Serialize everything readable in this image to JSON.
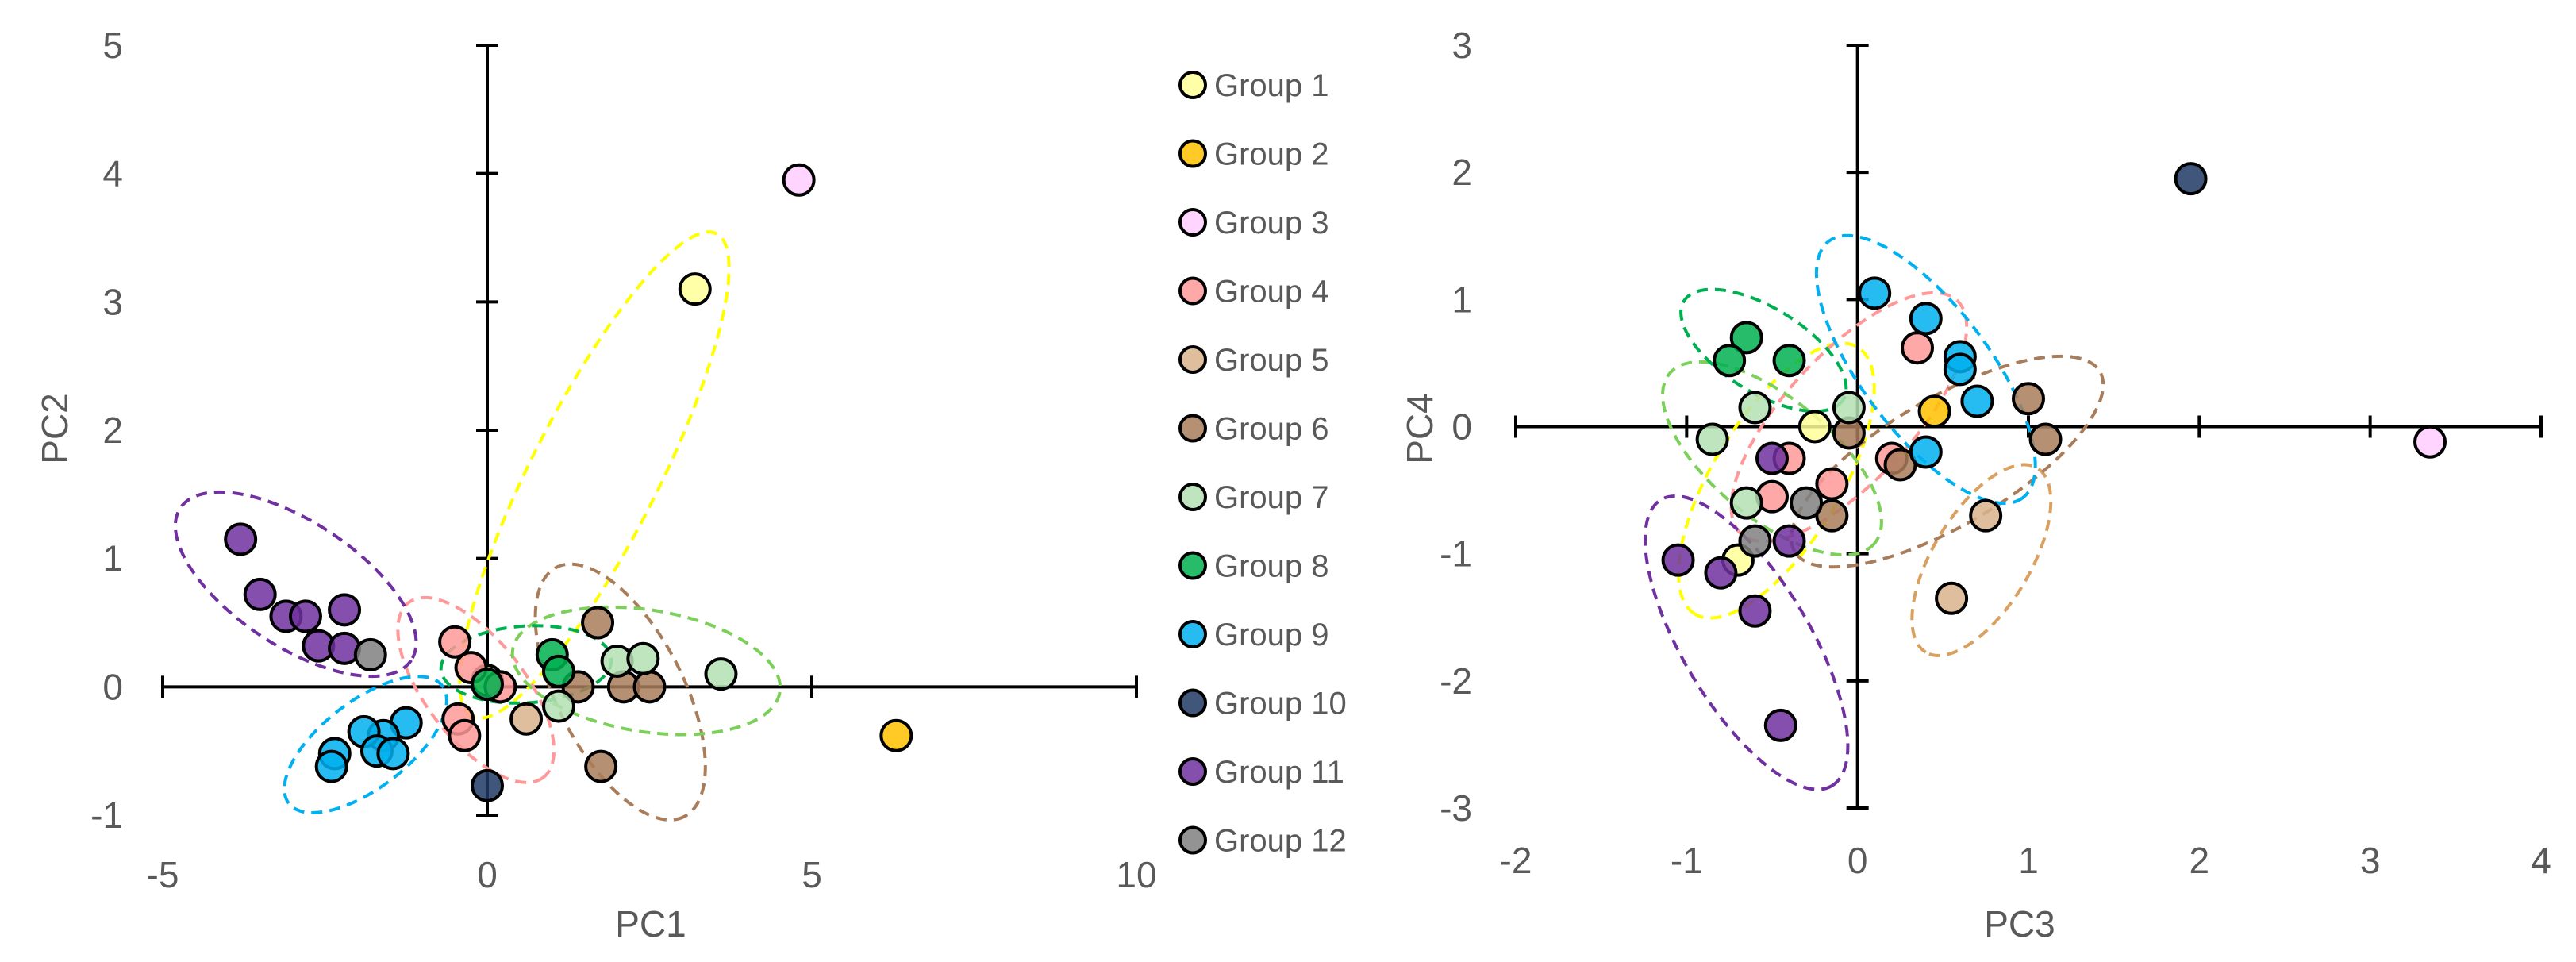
{
  "chart_data": [
    {
      "type": "scatter",
      "title": "",
      "xlabel": "PC1",
      "ylabel": "PC2",
      "xlim": [
        -5,
        10
      ],
      "ylim": [
        -1,
        5
      ],
      "xticks": [
        -5,
        0,
        5,
        10
      ],
      "yticks": [
        -1,
        0,
        1,
        2,
        3,
        4,
        5
      ],
      "grid": false,
      "series": [
        {
          "name": "Group 1",
          "points": [
            [
              3.2,
              3.1
            ],
            [
              0.0,
              0.05
            ]
          ]
        },
        {
          "name": "Group 2",
          "points": [
            [
              6.3,
              -0.38
            ]
          ]
        },
        {
          "name": "Group 3",
          "points": [
            [
              4.8,
              3.95
            ]
          ]
        },
        {
          "name": "Group 4",
          "points": [
            [
              -0.5,
              0.35
            ],
            [
              -0.25,
              0.15
            ],
            [
              0.2,
              0.0
            ],
            [
              -0.45,
              -0.25
            ],
            [
              -0.35,
              -0.38
            ]
          ]
        },
        {
          "name": "Group 5",
          "points": [
            [
              0.6,
              -0.25
            ]
          ]
        },
        {
          "name": "Group 6",
          "points": [
            [
              1.7,
              0.5
            ],
            [
              1.4,
              0.0
            ],
            [
              2.1,
              0.0
            ],
            [
              2.5,
              0.0
            ],
            [
              1.75,
              -0.62
            ]
          ]
        },
        {
          "name": "Group 7",
          "points": [
            [
              1.1,
              -0.15
            ],
            [
              2.0,
              0.2
            ],
            [
              2.4,
              0.22
            ],
            [
              3.6,
              0.1
            ]
          ]
        },
        {
          "name": "Group 8",
          "points": [
            [
              1.0,
              0.25
            ],
            [
              1.1,
              0.12
            ],
            [
              0.0,
              0.02
            ]
          ]
        },
        {
          "name": "Group 9",
          "points": [
            [
              -1.25,
              -0.28
            ],
            [
              -1.6,
              -0.38
            ],
            [
              -1.9,
              -0.35
            ],
            [
              -1.7,
              -0.5
            ],
            [
              -1.45,
              -0.52
            ],
            [
              -2.35,
              -0.52
            ],
            [
              -2.4,
              -0.62
            ]
          ]
        },
        {
          "name": "Group 10",
          "points": [
            [
              0.0,
              -0.77
            ]
          ]
        },
        {
          "name": "Group 11",
          "points": [
            [
              -3.8,
              1.15
            ],
            [
              -3.5,
              0.72
            ],
            [
              -3.1,
              0.55
            ],
            [
              -2.8,
              0.55
            ],
            [
              -2.2,
              0.6
            ],
            [
              -2.6,
              0.32
            ],
            [
              -2.2,
              0.3
            ]
          ]
        },
        {
          "name": "Group 12",
          "points": [
            [
              -1.8,
              0.25
            ]
          ]
        }
      ],
      "ellipses": [
        {
          "group": "Group 1",
          "points": [
            [
              3.3,
              3.3
            ],
            [
              0.0,
              0.0
            ]
          ]
        },
        {
          "group": "Group 4",
          "points": [
            [
              -0.9,
              0.45
            ],
            [
              0.55,
              -0.5
            ]
          ]
        },
        {
          "group": "Group 6",
          "points": [
            [
              1.3,
              0.7
            ],
            [
              2.8,
              -0.78
            ]
          ]
        },
        {
          "group": "Group 7",
          "points": [
            [
              0.9,
              0.25
            ],
            [
              4.0,
              0.0
            ]
          ]
        },
        {
          "group": "Group 8",
          "points": [
            [
              -0.2,
              0.15
            ],
            [
              1.4,
              0.2
            ]
          ]
        },
        {
          "group": "Group 9",
          "points": [
            [
              -1.1,
              -0.15
            ],
            [
              -2.65,
              -0.75
            ]
          ]
        },
        {
          "group": "Group 11",
          "points": [
            [
              -4.3,
              1.25
            ],
            [
              -1.6,
              0.35
            ]
          ]
        }
      ]
    },
    {
      "type": "scatter",
      "title": "",
      "xlabel": "PC3",
      "ylabel": "PC4",
      "xlim": [
        -2,
        4
      ],
      "ylim": [
        -3,
        3
      ],
      "xticks": [
        -2,
        -1,
        0,
        1,
        2,
        3,
        4
      ],
      "yticks": [
        -3,
        -2,
        -1,
        0,
        1,
        2,
        3
      ],
      "grid": false,
      "series": [
        {
          "name": "Group 1",
          "points": [
            [
              -0.25,
              0.0
            ],
            [
              -0.7,
              -1.05
            ]
          ]
        },
        {
          "name": "Group 2",
          "points": [
            [
              0.45,
              0.12
            ]
          ]
        },
        {
          "name": "Group 3",
          "points": [
            [
              3.35,
              -0.12
            ]
          ]
        },
        {
          "name": "Group 4",
          "points": [
            [
              0.35,
              0.62
            ],
            [
              -0.4,
              -0.25
            ],
            [
              -0.15,
              -0.45
            ],
            [
              -0.5,
              -0.55
            ],
            [
              0.2,
              -0.25
            ]
          ]
        },
        {
          "name": "Group 5",
          "points": [
            [
              0.75,
              -0.7
            ],
            [
              0.55,
              -1.35
            ]
          ]
        },
        {
          "name": "Group 6",
          "points": [
            [
              1.0,
              0.22
            ],
            [
              1.1,
              -0.1
            ],
            [
              0.25,
              -0.3
            ],
            [
              -0.05,
              -0.05
            ],
            [
              -0.15,
              -0.7
            ]
          ]
        },
        {
          "name": "Group 7",
          "points": [
            [
              -0.6,
              0.15
            ],
            [
              -0.85,
              -0.1
            ],
            [
              -0.65,
              -0.6
            ],
            [
              -0.05,
              0.15
            ]
          ]
        },
        {
          "name": "Group 8",
          "points": [
            [
              -0.65,
              0.7
            ],
            [
              -0.75,
              0.52
            ],
            [
              -0.4,
              0.52
            ]
          ]
        },
        {
          "name": "Group 9",
          "points": [
            [
              0.1,
              1.05
            ],
            [
              0.4,
              0.85
            ],
            [
              0.6,
              0.55
            ],
            [
              0.6,
              0.45
            ],
            [
              0.7,
              0.2
            ],
            [
              0.4,
              -0.2
            ]
          ]
        },
        {
          "name": "Group 10",
          "points": [
            [
              1.95,
              1.95
            ]
          ]
        },
        {
          "name": "Group 11",
          "points": [
            [
              -1.05,
              -1.05
            ],
            [
              -0.8,
              -1.15
            ],
            [
              -0.6,
              -1.45
            ],
            [
              -0.45,
              -2.35
            ],
            [
              -0.4,
              -0.9
            ],
            [
              -0.5,
              -0.25
            ]
          ]
        },
        {
          "name": "Group 12",
          "points": [
            [
              -0.6,
              -0.9
            ],
            [
              -0.3,
              -0.6
            ]
          ]
        }
      ],
      "ellipses": [
        {
          "group": "Group 1",
          "points": [
            [
              -0.1,
              0.4
            ],
            [
              -0.85,
              -1.25
            ]
          ]
        },
        {
          "group": "Group 4",
          "points": [
            [
              0.45,
              0.8
            ],
            [
              -0.55,
              -0.65
            ]
          ]
        },
        {
          "group": "Group 5",
          "points": [
            [
              0.95,
              -0.55
            ],
            [
              0.5,
              -1.55
            ]
          ]
        },
        {
          "group": "Group 6",
          "points": [
            [
              1.25,
              0.3
            ],
            [
              -0.2,
              -0.85
            ]
          ]
        },
        {
          "group": "Group 7",
          "points": [
            [
              -0.95,
              0.25
            ],
            [
              -0.05,
              -0.75
            ]
          ]
        },
        {
          "group": "Group 8",
          "points": [
            [
              -0.85,
              0.85
            ],
            [
              -0.25,
              0.35
            ]
          ]
        },
        {
          "group": "Group 9",
          "points": [
            [
              -0.05,
              1.25
            ],
            [
              0.85,
              -0.35
            ]
          ]
        },
        {
          "group": "Group 11",
          "points": [
            [
              -1.05,
              -0.8
            ],
            [
              -0.25,
              -2.6
            ]
          ]
        }
      ]
    }
  ],
  "legend": {
    "placement": "between-charts",
    "entries": [
      {
        "label": "Group 1",
        "color": "#FFFF99"
      },
      {
        "label": "Group 2",
        "color": "#FFC000"
      },
      {
        "label": "Group 3",
        "color": "#FFCCFF"
      },
      {
        "label": "Group 4",
        "color": "#FF9999"
      },
      {
        "label": "Group 5",
        "color": "#D9B38C"
      },
      {
        "label": "Group 6",
        "color": "#A97C5A"
      },
      {
        "label": "Group 7",
        "color": "#B3E0B3"
      },
      {
        "label": "Group 8",
        "color": "#00B050"
      },
      {
        "label": "Group 9",
        "color": "#00B0F0"
      },
      {
        "label": "Group 10",
        "color": "#203864"
      },
      {
        "label": "Group 11",
        "color": "#7030A0"
      },
      {
        "label": "Group 12",
        "color": "#808080"
      }
    ]
  },
  "ellipse_colors": {
    "Group 1": "#FFFF00",
    "Group 4": "#FF9999",
    "Group 5": "#D9A060",
    "Group 6": "#A97C5A",
    "Group 7": "#7CD05A",
    "Group 8": "#00B050",
    "Group 9": "#00B0F0",
    "Group 11": "#7030A0"
  },
  "style": {
    "axis_color": "#000000",
    "text_color": "#595959",
    "marker_stroke": "#000000"
  }
}
